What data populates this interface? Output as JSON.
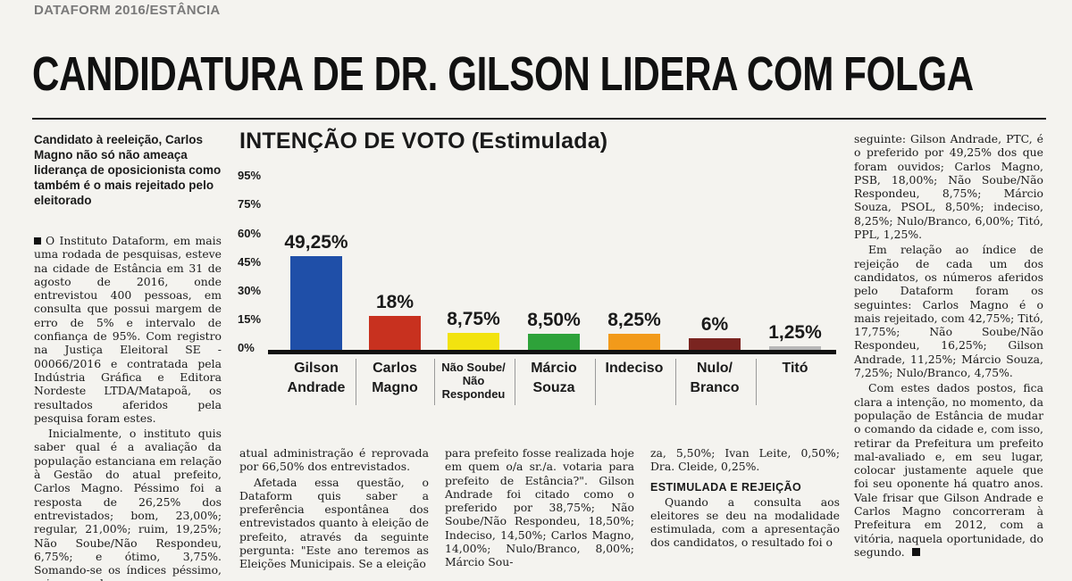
{
  "kicker": "DATAFORM 2016/ESTÂNCIA",
  "headline": "CANDIDATURA DE DR. GILSON LIDERA COM FOLGA",
  "lead": "Candidato à reeleição, Carlos Magno não só não ameaça liderança de oposicionista como também é o mais rejeitado pelo eleitorado",
  "col1": [
    "O Instituto Dataform, em mais uma rodada de pesquisas, esteve na cidade de Estância em 31 de agosto de 2016, onde entrevistou 400 pessoas, em consulta que possui margem de erro de 5% e intervalo de confiança de 95%. Com registro na Justiça Eleitoral SE - 00066/2016 e contratada pela Indústria Gráfica e Editora Nordeste LTDA/Matapoã, os resultados aferidos pela pesquisa foram estes.",
    "Inicialmente, o instituto quis saber qual é a avaliação da população estanciana em relação à Gestão do atual prefeito, Carlos Magno. Péssimo foi a resposta de 26,25% dos entrevistados; bom, 23,00%; regular, 21,00%; ruim, 19,25%; Não Soube/Não Respondeu, 6,75%; e ótimo, 3,75%. Somando-se os índices péssimo, ruim e regular, a"
  ],
  "col2": [
    "atual administração é reprovada por 66,50% dos entrevistados.",
    "Afetada essa questão, o Dataform quis saber a preferência espontânea dos entrevistados quanto à eleição de prefeito, através da seguinte pergunta: \"Este ano teremos as Eleições Municipais. Se a eleição"
  ],
  "col3": [
    "para prefeito fosse realizada hoje em quem o/a sr./a. votaria para prefeito de Estância?\". Gilson Andrade foi citado como o preferido por 38,75%; Não Soube/Não Respondeu, 18,50%; Indeciso, 14,50%; Carlos Magno, 14,00%; Nulo/Branco, 8,00%; Márcio Sou-"
  ],
  "col4": {
    "text1": "za, 5,50%; Ivan Leite, 0,50%; Dra. Cleide, 0,25%.",
    "subhead": "ESTIMULADA E REJEIÇÃO",
    "text2": "Quando a consulta aos eleitores se deu na modalidade estimulada, com a apresentação dos candidatos, o resultado foi o"
  },
  "col5": [
    "seguinte: Gilson Andrade, PTC, é o preferido por 49,25% dos que foram ouvidos; Carlos Magno, PSB, 18,00%; Não Soube/Não Respondeu, 8,75%; Márcio Souza, PSOL, 8,50%; indeciso, 8,25%; Nulo/Branco, 6,00%; Titó, PPL, 1,25%.",
    "Em relação ao índice de rejeição de cada um dos candidatos, os números aferidos pelo Dataform foram os seguintes: Carlos Magno é o mais rejeitado, com 42,75%; Titó, 17,75%; Não Soube/Não Respondeu, 16,25%; Gilson Andrade, 11,25%; Márcio Souza, 7,25%; Nulo/Branco, 4,75%.",
    "Com estes dados postos, fica clara a intenção, no momento, da população de Estância de mudar o comando da cidade e, com isso, retirar da Prefeitura um prefeito mal-avaliado e, em seu lugar, colocar justamente aquele que foi seu oponente há quatro anos. Vale frisar que Gilson Andrade e Carlos Magno concorreram à Prefeitura em 2012, com a vitória, naquela oportunidade, do segundo."
  ],
  "chart_data": {
    "type": "bar",
    "title": "INTENÇÃO DE VOTO (Estimulada)",
    "yticks": [
      "95%",
      "75%",
      "60%",
      "45%",
      "30%",
      "15%",
      "0%"
    ],
    "ytick_values": [
      95,
      75,
      60,
      45,
      30,
      15,
      0
    ],
    "categories": [
      {
        "lines": [
          "Gilson",
          "Andrade"
        ],
        "small": false
      },
      {
        "lines": [
          "Carlos",
          "Magno"
        ],
        "small": false
      },
      {
        "lines": [
          "Não Soube/",
          "Não",
          "Respondeu"
        ],
        "small": true
      },
      {
        "lines": [
          "Márcio",
          "Souza"
        ],
        "small": false
      },
      {
        "lines": [
          "Indeciso"
        ],
        "small": false
      },
      {
        "lines": [
          "Nulo/",
          "Branco"
        ],
        "small": false
      },
      {
        "lines": [
          "Titó"
        ],
        "small": false
      }
    ],
    "values": [
      49.25,
      18,
      8.75,
      8.5,
      8.25,
      6,
      1.25
    ],
    "value_labels": [
      "49,25%",
      "18%",
      "8,75%",
      "8,50%",
      "8,25%",
      "6%",
      "1,25%"
    ],
    "colors": [
      "#1f4fa8",
      "#c8311f",
      "#f2e30f",
      "#2ea23a",
      "#f29a1a",
      "#7a2420",
      "#b7b7b7"
    ],
    "ylim": [
      0,
      95
    ]
  }
}
